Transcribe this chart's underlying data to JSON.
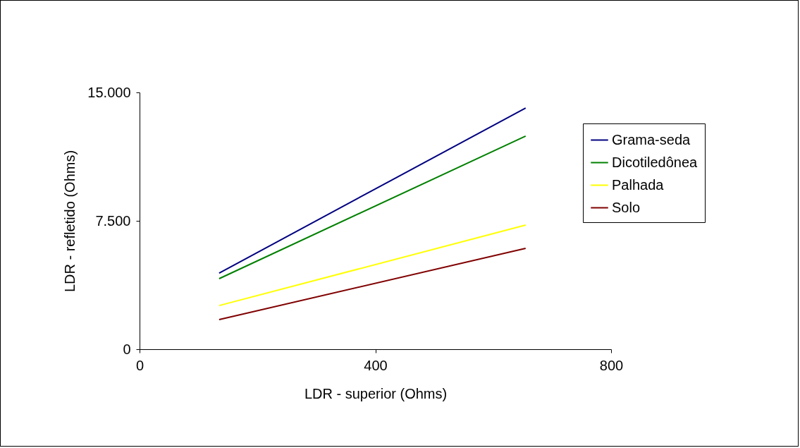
{
  "chart_data": {
    "type": "line",
    "xlabel": "LDR - superior (Ohms)",
    "ylabel": "LDR - refletido (Ohms)",
    "xlim": [
      0,
      800
    ],
    "xticks": [
      0,
      400,
      800
    ],
    "ylim": [
      0,
      15000
    ],
    "yticks": [
      0,
      {
        "value": 7500,
        "label": "7.500"
      },
      {
        "value": 15000,
        "label": "15.000"
      }
    ],
    "x": [
      135,
      655
    ],
    "grid": false,
    "legend": "right",
    "marker": "none",
    "line_style": "solid",
    "series": [
      {
        "name": "Grama-seda",
        "color": "#000080",
        "values": [
          4450,
          14090
        ]
      },
      {
        "name": "Dicotiledônea",
        "color": "#008000",
        "values": [
          4120,
          12450
        ]
      },
      {
        "name": "Palhada",
        "color": "#ffff00",
        "values": [
          2550,
          7250
        ]
      },
      {
        "name": "Solo",
        "color": "#800000",
        "values": [
          1730,
          5890
        ]
      }
    ]
  }
}
